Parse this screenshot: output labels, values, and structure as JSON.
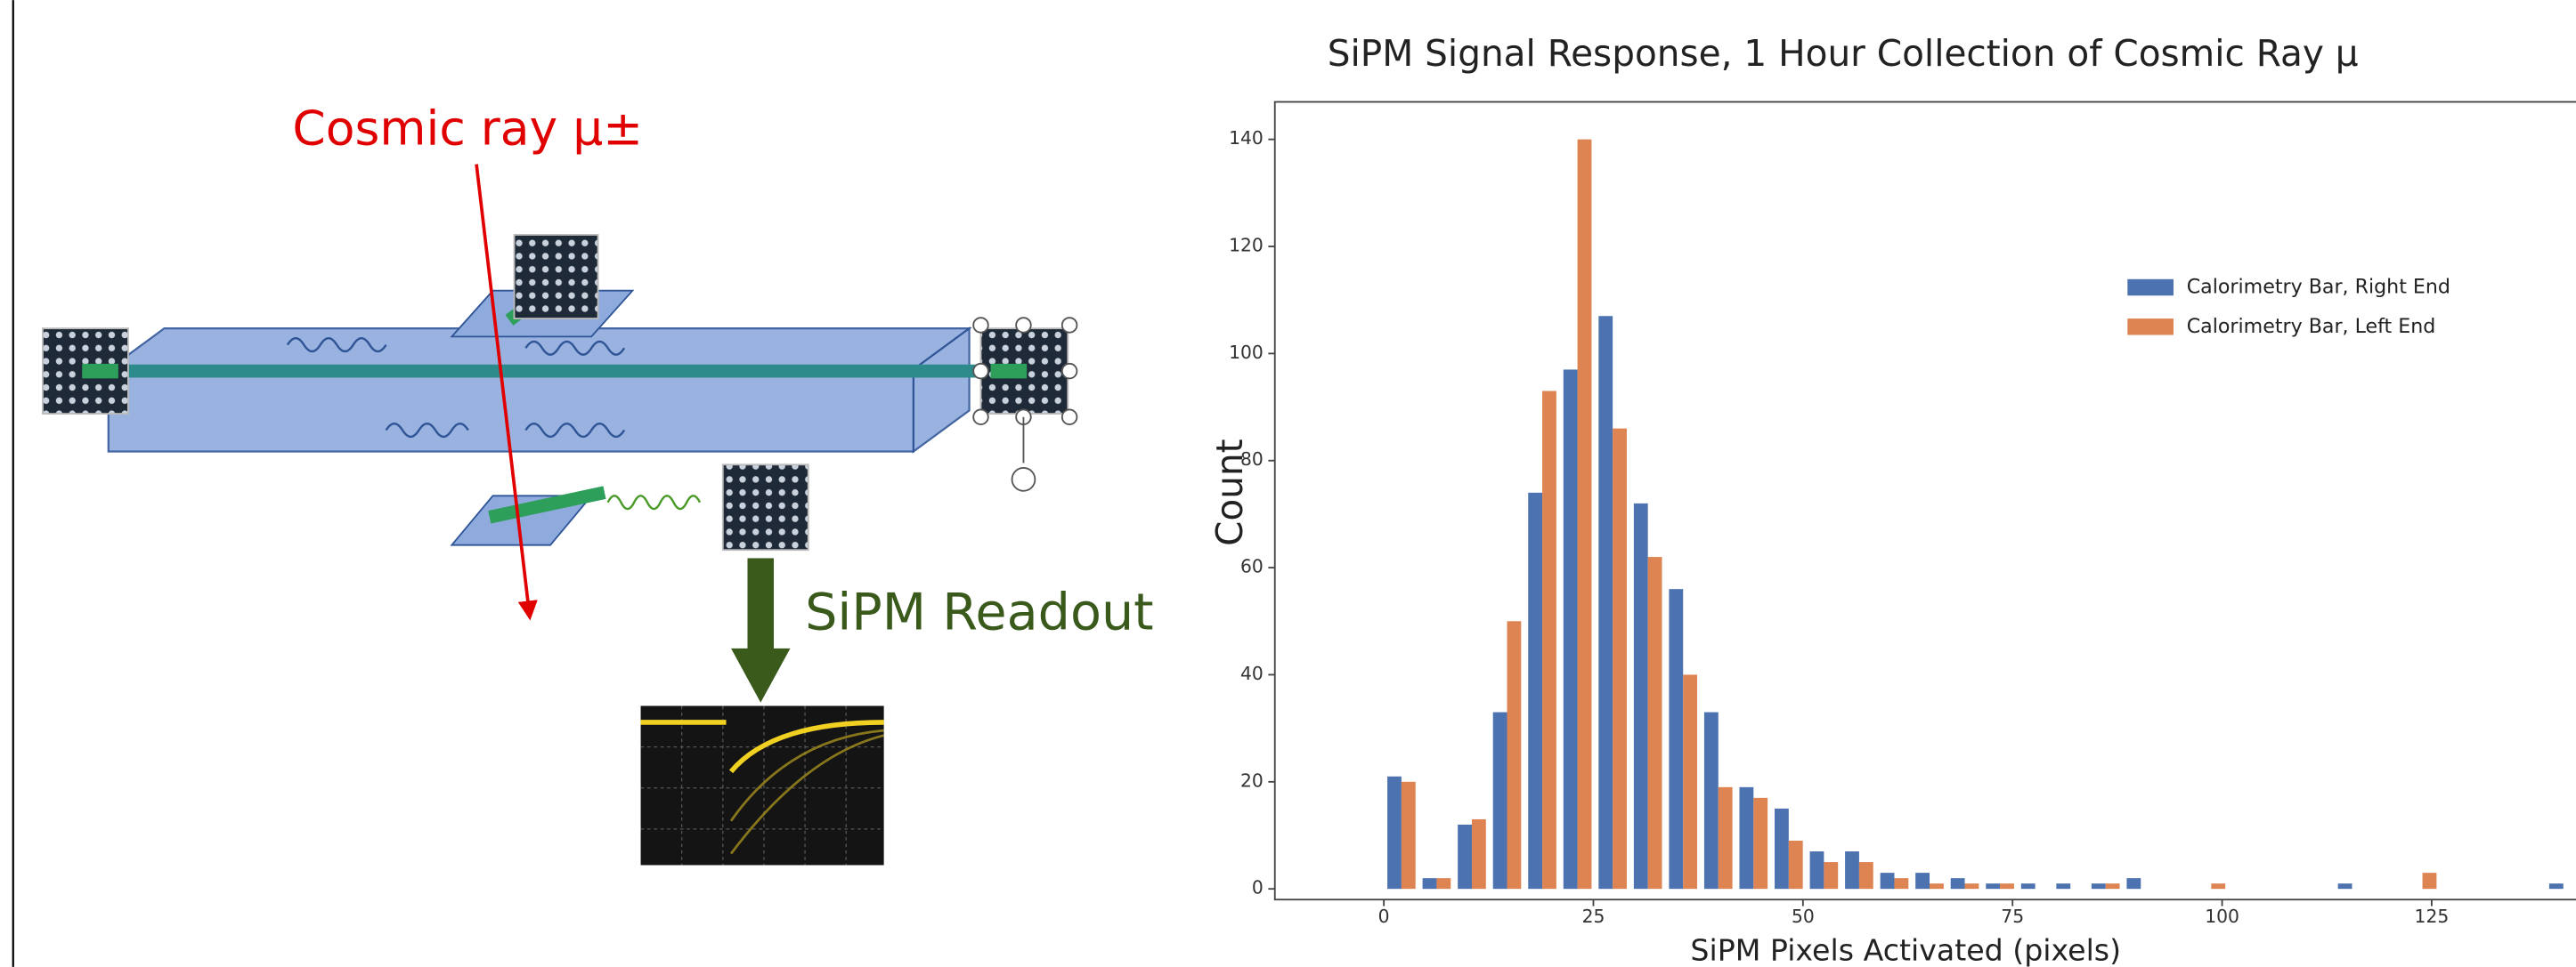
{
  "diagram": {
    "labels": [
      "Cosmic ray μ±",
      "SiPM Readout"
    ]
  },
  "chart_data": {
    "type": "histogram",
    "title": "SiPM Signal Response, 1 Hour Collection of Cosmic Ray μ",
    "x_label": "SiPM Pixels Activated (pixels)",
    "y_label": "Count",
    "bins": [
      0,
      4.2,
      8.4,
      12.6,
      16.8,
      21,
      25.2,
      29.4,
      33.6,
      37.8,
      42,
      46.2,
      50.4,
      54.6,
      58.8,
      63,
      67.2,
      71.4,
      75.6,
      79.8,
      84,
      88.2,
      92.4,
      96.6,
      100.8,
      105,
      109.2,
      113.4,
      117.6,
      121.8,
      126,
      130.2,
      134.4,
      138.6,
      142.8
    ],
    "series": [
      {
        "name": "Calorimetry Bar, Right End",
        "color": "#4c72b0",
        "values": [
          21,
          2,
          12,
          33,
          74,
          97,
          107,
          72,
          56,
          33,
          19,
          15,
          7,
          7,
          3,
          3,
          2,
          1,
          1,
          1,
          1,
          2,
          0,
          0,
          0,
          0,
          0,
          1,
          0,
          0,
          0,
          0,
          0,
          1
        ]
      },
      {
        "name": "Calorimetry Bar, Left End",
        "color": "#dd8452",
        "values": [
          20,
          2,
          13,
          50,
          93,
          140,
          86,
          62,
          40,
          19,
          17,
          9,
          5,
          5,
          2,
          1,
          1,
          1,
          0,
          0,
          1,
          0,
          0,
          1,
          0,
          0,
          0,
          0,
          0,
          3,
          0,
          0,
          0,
          0
        ]
      }
    ],
    "xlim": [
      -13,
      143
    ],
    "ylim": [
      -2,
      147
    ],
    "xticks": [
      0,
      25,
      50,
      75,
      100,
      125
    ],
    "yticks": [
      0,
      20,
      40,
      60,
      80,
      100,
      120,
      140
    ],
    "grid": false,
    "legend": "upper right"
  }
}
